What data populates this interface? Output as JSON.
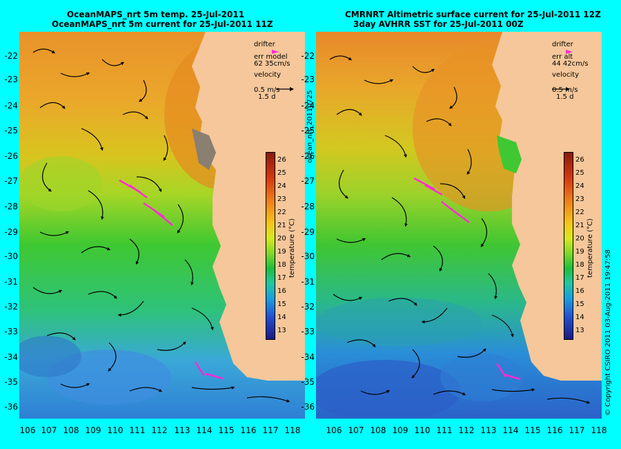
{
  "left_panel": {
    "title_line1": "OceanMAPS_nrt 5m temp. 25-Jul-2011",
    "title_line2": "OceanMAPS_nrt 5m current for 25-Jul-2011 11Z",
    "legend": {
      "drifter": "drifter",
      "err_label": "err model",
      "err_value": "62 35cm/s",
      "velocity": "velocity",
      "velocity_value": "0.5 m/s",
      "velocity_days": "1.5 d"
    }
  },
  "right_panel": {
    "title_line1": "CMRNRT Altimetric surface current for 25-Jul-2011 12Z",
    "title_line2": "3day AVHRR SST for 25-Jul-2011 00Z",
    "legend": {
      "drifter": "drifter",
      "err_label": "err alt",
      "err_value": "44 42cm/s",
      "velocity": "velocity",
      "velocity_value": "0.5 m/s",
      "velocity_days": "1.5 d"
    }
  },
  "colorbar": {
    "ticks": [
      "26",
      "25",
      "24",
      "23",
      "22",
      "21",
      "20",
      "19",
      "18",
      "17",
      "16",
      "15",
      "14",
      "13"
    ],
    "unit_label": "temperature (°C)"
  },
  "side_labels": {
    "product": "ocean_nrt_20110725",
    "copyright": "© Copyright CSIRO 2011   03-Aug-2011 19:47:58"
  },
  "axes": {
    "lat_ticks": [
      "-22",
      "-23",
      "-24",
      "-25",
      "-26",
      "-27",
      "-28",
      "-29",
      "-30",
      "-31",
      "-32",
      "-33",
      "-34",
      "-35",
      "-36"
    ],
    "lon_ticks": [
      "106",
      "107",
      "108",
      "109",
      "110",
      "111",
      "112",
      "113",
      "114",
      "115",
      "116",
      "117",
      "118"
    ]
  },
  "colors": {
    "background": "#00ffff",
    "land": "#f5c79a",
    "drifter": "#ff2bd6",
    "warm": "#e79a26",
    "mid": "#c8d81e",
    "cool": "#2bbf3a",
    "cold": "#2a88d8"
  }
}
